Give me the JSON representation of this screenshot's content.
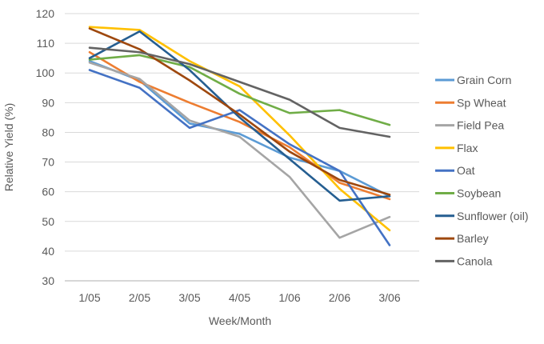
{
  "chart_data": {
    "type": "line",
    "title": "",
    "xlabel": "Week/Month",
    "ylabel": "Relative Yield (%)",
    "categories": [
      "1/05",
      "2/05",
      "3/05",
      "4/05",
      "1/06",
      "2/06",
      "3/06"
    ],
    "y_ticks": [
      30,
      40,
      50,
      60,
      70,
      80,
      90,
      100,
      110,
      120
    ],
    "ylim": [
      30,
      120
    ],
    "grid": "horizontal",
    "legend_position": "right",
    "colors": {
      "grid": "#d9d9d9",
      "axis": "#bfbfbf",
      "text": "#595959"
    },
    "series": [
      {
        "name": "Grain Corn",
        "color": "#5B9BD5",
        "values": [
          104,
          97.5,
          83,
          79.5,
          71.5,
          67,
          58.5
        ]
      },
      {
        "name": "Sp Wheat",
        "color": "#ED7D31",
        "values": [
          107,
          97,
          90,
          83.5,
          75,
          63,
          57.5
        ]
      },
      {
        "name": "Field Pea",
        "color": "#A5A5A5",
        "values": [
          103.5,
          98,
          84,
          78.5,
          65,
          44.5,
          51.5
        ]
      },
      {
        "name": "Flax",
        "color": "#FFC000",
        "values": [
          115.5,
          114.5,
          104,
          95.5,
          79,
          61,
          47
        ]
      },
      {
        "name": "Oat",
        "color": "#4472C4",
        "values": [
          101,
          95,
          81.5,
          87.5,
          76,
          67,
          42
        ]
      },
      {
        "name": "Soybean",
        "color": "#70AD47",
        "values": [
          104.5,
          106,
          102,
          93,
          86.5,
          87.5,
          82.5
        ]
      },
      {
        "name": "Sunflower (oil)",
        "color": "#255E91",
        "values": [
          105,
          114,
          101,
          85,
          71,
          57,
          58.5
        ]
      },
      {
        "name": "Barley",
        "color": "#9E480E",
        "values": [
          115,
          108,
          97.5,
          86,
          73.5,
          64,
          59
        ]
      },
      {
        "name": "Canola",
        "color": "#636363",
        "values": [
          108.5,
          107,
          103,
          97,
          91,
          81.5,
          78.5
        ]
      }
    ]
  }
}
